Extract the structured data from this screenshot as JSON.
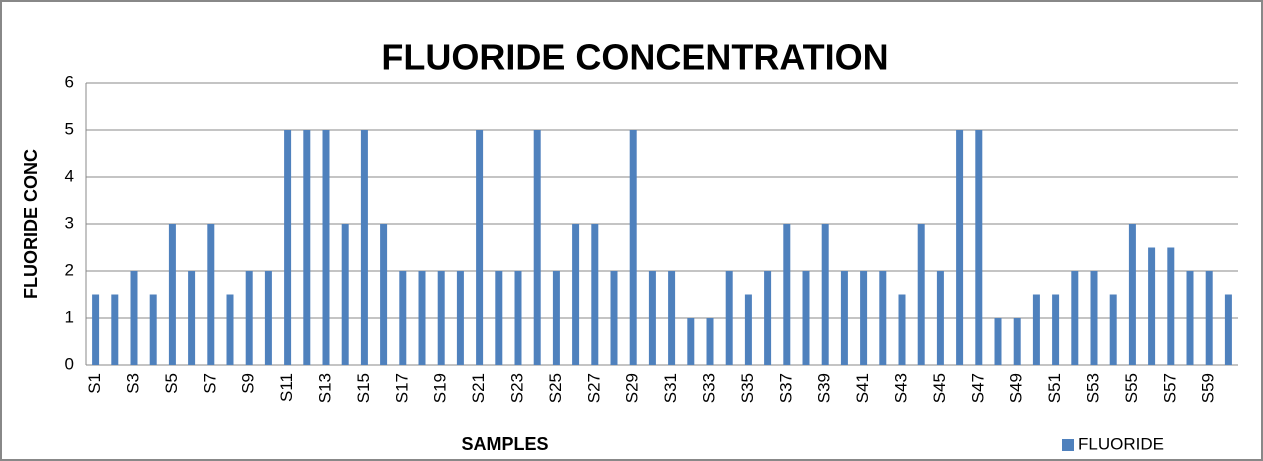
{
  "chart_data": {
    "type": "bar",
    "title": "FLUORIDE CONCENTRATION",
    "x_label": "SAMPLES",
    "y_label": "FLUORIDE CONC",
    "categories": [
      "S1",
      null,
      "S3",
      null,
      "S5",
      null,
      "S7",
      null,
      "S9",
      null,
      "S11",
      null,
      "S13",
      null,
      "S15",
      null,
      "S17",
      null,
      "S19",
      null,
      "S21",
      null,
      "S23",
      null,
      "S25",
      null,
      "S27",
      null,
      "S29",
      null,
      "S31",
      null,
      "S33",
      null,
      "S35",
      null,
      "S37",
      null,
      "S39",
      null,
      "S41",
      null,
      "S43",
      null,
      "S45",
      null,
      "S47",
      null,
      "S49",
      null,
      "S51",
      null,
      "S53",
      null,
      "S55",
      null,
      "S57",
      null,
      "S59",
      null
    ],
    "series": [
      {
        "name": "FLUORIDE",
        "color": "#4f81bd",
        "values": [
          1.5,
          1.5,
          2,
          1.5,
          3,
          2,
          3,
          1.5,
          2,
          2,
          5,
          5,
          5,
          3,
          5,
          3,
          2,
          2,
          2,
          2,
          5,
          2,
          2,
          5,
          2,
          3,
          3,
          2,
          5,
          2,
          2,
          1,
          1,
          2,
          1.5,
          2,
          3,
          2,
          3,
          2,
          2,
          2,
          1.5,
          3,
          2,
          5,
          5,
          1,
          1,
          1.5,
          1.5,
          2,
          2,
          1.5,
          3,
          2.5,
          2.5,
          2,
          2,
          1.5
        ]
      }
    ],
    "ylim": [
      0,
      6
    ],
    "yticks": [
      0,
      1,
      2,
      3,
      4,
      5,
      6
    ],
    "grid": true,
    "legend": "bottom-right"
  }
}
